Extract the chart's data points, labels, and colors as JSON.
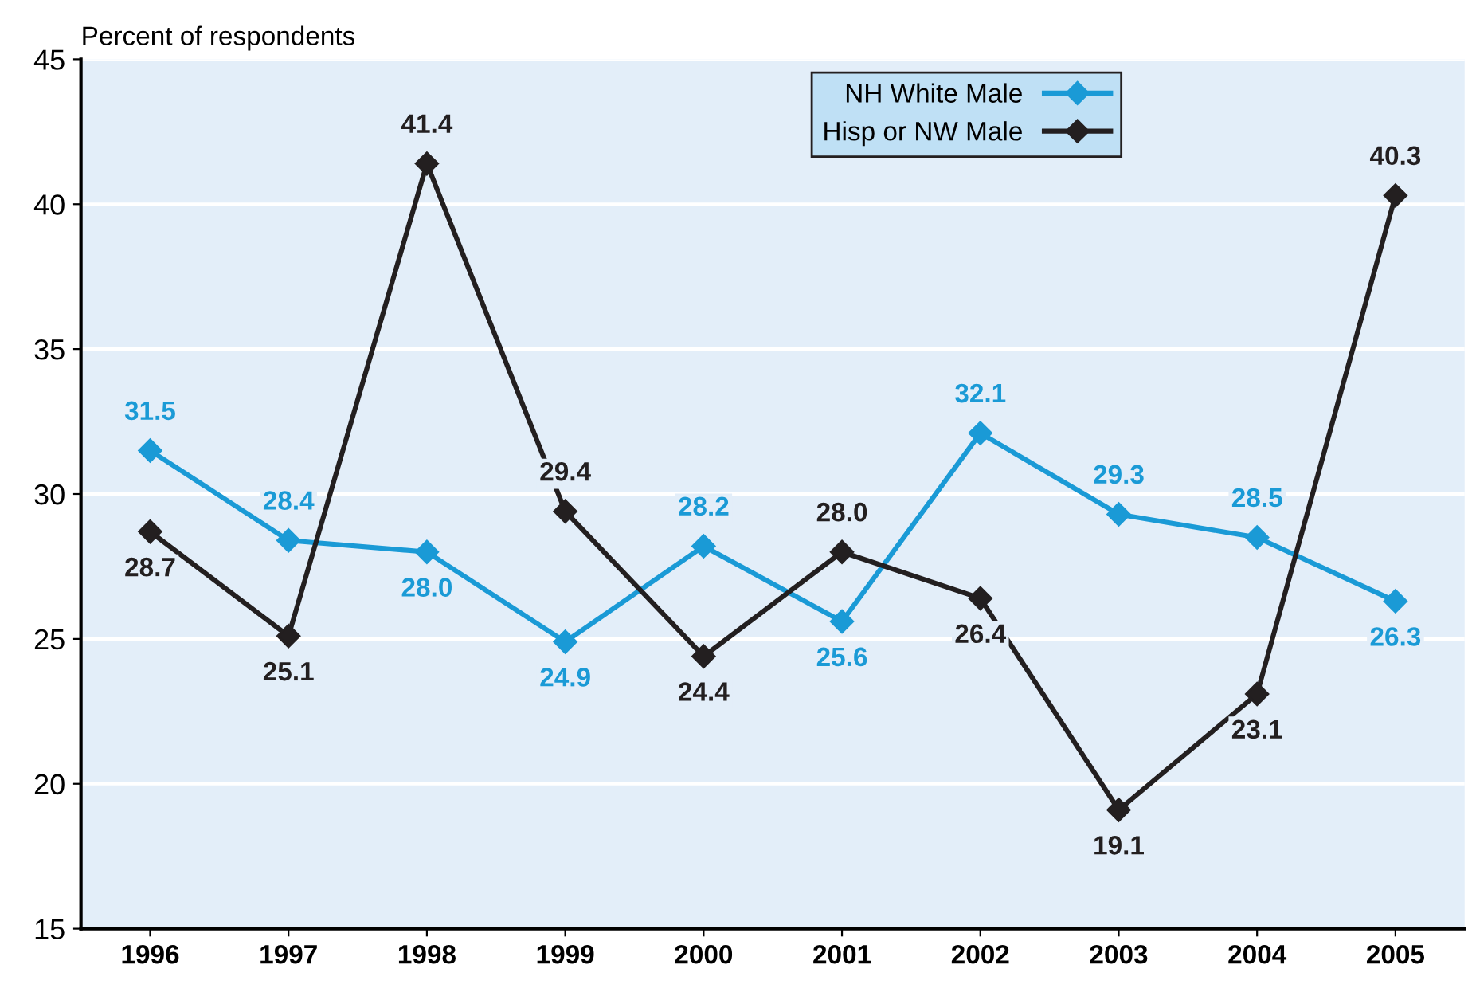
{
  "chart_data": {
    "type": "line",
    "ylabel": "Percent of respondents",
    "categories": [
      "1996",
      "1997",
      "1998",
      "1999",
      "2000",
      "2001",
      "2002",
      "2003",
      "2004",
      "2005"
    ],
    "series": [
      {
        "name": "NH White Male",
        "color": "#1a9ad6",
        "values": [
          31.5,
          28.4,
          28.0,
          24.9,
          28.2,
          25.6,
          32.1,
          29.3,
          28.5,
          26.3
        ],
        "value_labels": [
          "31.5",
          "28.4",
          "28.0",
          "24.9",
          "28.2",
          "25.6",
          "32.1",
          "29.3",
          "28.5",
          "26.3"
        ]
      },
      {
        "name": "Hisp or NW Male",
        "color": "#231f20",
        "values": [
          28.7,
          25.1,
          41.4,
          29.4,
          24.4,
          28.0,
          26.4,
          19.1,
          23.1,
          40.3
        ],
        "value_labels": [
          "28.7",
          "25.1",
          "41.4",
          "29.4",
          "24.4",
          "28.0",
          "26.4",
          "19.1",
          "23.1",
          "40.3"
        ]
      }
    ],
    "ylim": [
      15,
      45
    ],
    "yticks": [
      15,
      20,
      25,
      30,
      35,
      40,
      45
    ],
    "grid": "y",
    "legend": "top",
    "marker": "diamond",
    "line_style": "solid"
  }
}
